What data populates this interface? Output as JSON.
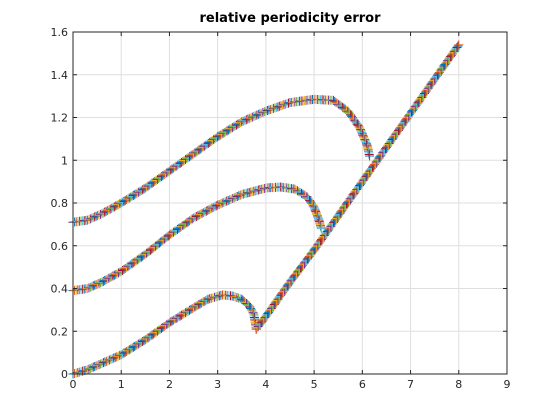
{
  "chart_data": {
    "type": "scatter",
    "title": "relative periodicity error",
    "xlabel": "",
    "ylabel": "",
    "xlim": [
      0,
      9
    ],
    "ylim": [
      0,
      1.6
    ],
    "xticks": [
      "0",
      "1",
      "2",
      "3",
      "4",
      "5",
      "6",
      "7",
      "8",
      "9"
    ],
    "yticks": [
      "0",
      "0.2",
      "0.4",
      "0.6",
      "0.8",
      "1",
      "1.2",
      "1.4",
      "1.6"
    ],
    "grid": true,
    "marker": "+",
    "marker_colors": [
      "#0072BD",
      "#D95319",
      "#EDB120",
      "#7E2F8E",
      "#77AC30",
      "#4DBEEE",
      "#A2142F"
    ],
    "series": [
      {
        "values": [
          [
            0.0,
            0.0
          ],
          [
            0.3,
            0.02
          ],
          [
            0.6,
            0.05
          ],
          [
            1.0,
            0.09
          ],
          [
            1.5,
            0.16
          ],
          [
            2.0,
            0.24
          ],
          [
            2.5,
            0.31
          ],
          [
            2.8,
            0.35
          ],
          [
            3.1,
            0.37
          ],
          [
            3.3,
            0.365
          ],
          [
            3.5,
            0.35
          ],
          [
            3.65,
            0.32
          ],
          [
            3.75,
            0.28
          ],
          [
            3.8,
            0.21
          ]
        ]
      },
      {
        "values": [
          [
            0.0,
            0.39
          ],
          [
            0.3,
            0.4
          ],
          [
            0.6,
            0.43
          ],
          [
            1.0,
            0.48
          ],
          [
            1.5,
            0.56
          ],
          [
            2.0,
            0.65
          ],
          [
            2.5,
            0.73
          ],
          [
            3.0,
            0.79
          ],
          [
            3.5,
            0.84
          ],
          [
            4.0,
            0.87
          ],
          [
            4.3,
            0.875
          ],
          [
            4.6,
            0.865
          ],
          [
            4.85,
            0.83
          ],
          [
            5.0,
            0.78
          ],
          [
            5.1,
            0.72
          ],
          [
            5.15,
            0.68
          ]
        ]
      },
      {
        "values": [
          [
            0.0,
            0.71
          ],
          [
            0.3,
            0.72
          ],
          [
            0.6,
            0.75
          ],
          [
            1.0,
            0.8
          ],
          [
            1.5,
            0.87
          ],
          [
            2.0,
            0.95
          ],
          [
            2.5,
            1.03
          ],
          [
            3.0,
            1.11
          ],
          [
            3.5,
            1.18
          ],
          [
            4.0,
            1.23
          ],
          [
            4.5,
            1.27
          ],
          [
            5.0,
            1.285
          ],
          [
            5.4,
            1.28
          ],
          [
            5.7,
            1.23
          ],
          [
            5.95,
            1.15
          ],
          [
            6.1,
            1.07
          ],
          [
            6.15,
            1.02
          ]
        ]
      },
      {
        "values": [
          [
            3.8,
            0.21
          ],
          [
            4.0,
            0.27
          ],
          [
            4.5,
            0.43
          ],
          [
            5.0,
            0.58
          ],
          [
            5.5,
            0.74
          ],
          [
            6.0,
            0.9
          ],
          [
            6.5,
            1.06
          ],
          [
            7.0,
            1.22
          ],
          [
            7.5,
            1.38
          ],
          [
            8.0,
            1.54
          ]
        ]
      }
    ]
  }
}
